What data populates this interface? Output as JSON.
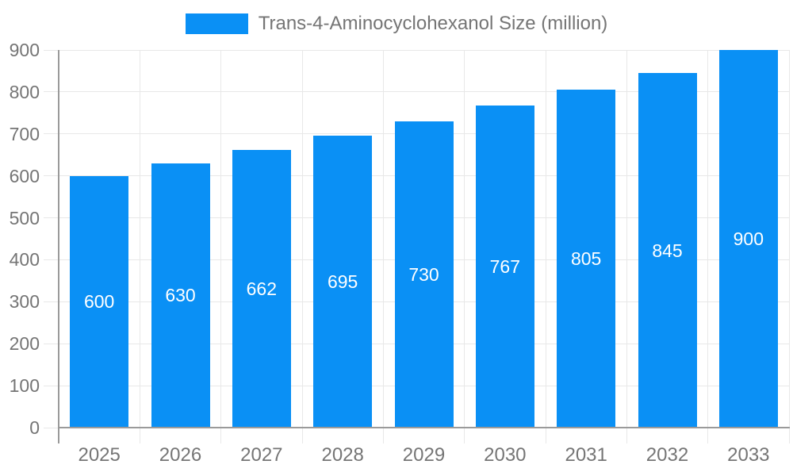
{
  "legend": {
    "label": "Trans-4-Aminocyclohexanol Size (million)"
  },
  "chart_data": {
    "type": "bar",
    "title": "Trans-4-Aminocyclohexanol Size (million)",
    "categories": [
      "2025",
      "2026",
      "2027",
      "2028",
      "2029",
      "2030",
      "2031",
      "2032",
      "2033"
    ],
    "values": [
      600,
      630,
      662,
      695,
      730,
      767,
      805,
      845,
      900
    ],
    "xlabel": "",
    "ylabel": "",
    "ylim": [
      0,
      900
    ],
    "ytick_step": 100,
    "ytick_labels": [
      "0",
      "100",
      "200",
      "300",
      "400",
      "500",
      "600",
      "700",
      "800",
      "900"
    ],
    "grid": true,
    "legend_position": "top",
    "bar_labels_inside": true
  },
  "colors": {
    "bar": "#0A90F5",
    "grid": "#E8E8E8",
    "axis": "#9A9A9A",
    "text": "#757575",
    "bar_label": "#FFFFFF",
    "background": "#FFFFFF"
  }
}
